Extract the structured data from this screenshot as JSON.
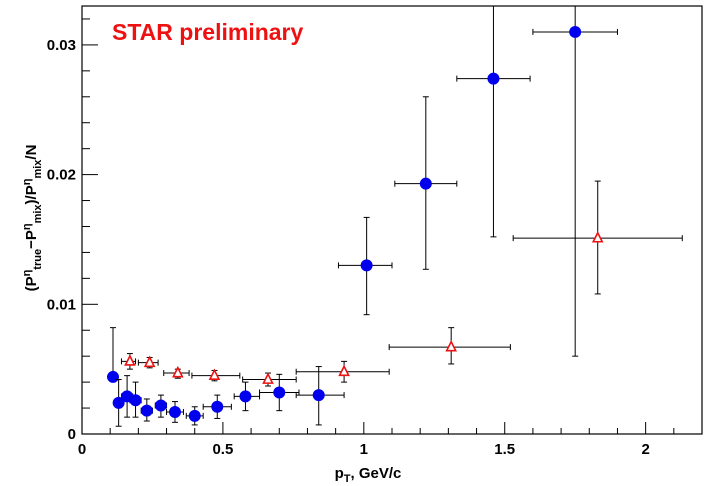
{
  "chart_data": {
    "type": "scatter",
    "annotation": "STAR preliminary",
    "annotation_color": "#ee1111",
    "xaxis": {
      "label_main": "p",
      "label_sub": "T",
      "label_rest": ", GeV/c",
      "range": [
        0,
        2.2
      ],
      "tick_labels": [
        "0",
        "0.5",
        "1",
        "1.5",
        "2"
      ]
    },
    "yaxis": {
      "label_parts": [
        {
          "t": "(P",
          "s": "n"
        },
        {
          "t": "η",
          "s": "sup"
        },
        {
          "t": "true",
          "s": "sub"
        },
        {
          "t": "−P",
          "s": "n"
        },
        {
          "t": "η",
          "s": "sup"
        },
        {
          "t": "mix",
          "s": "sub"
        },
        {
          "t": ")/P",
          "s": "n"
        },
        {
          "t": "η",
          "s": "sup"
        },
        {
          "t": "mix",
          "s": "sub"
        },
        {
          "t": "/N",
          "s": "n"
        }
      ],
      "range": [
        0,
        0.033
      ],
      "tick_labels": [
        "0",
        "0.01",
        "0.02",
        "0.03"
      ]
    },
    "grid": false,
    "series": [
      {
        "marker": "filled-circle",
        "color": "#0000ee",
        "points": [
          {
            "x": 0.11,
            "y": 0.0044,
            "xerr": [
              0.11,
              0.11
            ],
            "yerr": [
              0.0044,
              0.0082
            ]
          },
          {
            "x": 0.13,
            "y": 0.0024,
            "xerr": [
              0.12,
              0.14
            ],
            "yerr": [
              0.0006,
              0.0042
            ]
          },
          {
            "x": 0.16,
            "y": 0.0029,
            "xerr": [
              0.14,
              0.18
            ],
            "yerr": [
              0.0013,
              0.0045
            ]
          },
          {
            "x": 0.19,
            "y": 0.0026,
            "xerr": [
              0.17,
              0.21
            ],
            "yerr": [
              0.0013,
              0.004
            ]
          },
          {
            "x": 0.23,
            "y": 0.0018,
            "xerr": [
              0.21,
              0.25
            ],
            "yerr": [
              0.001,
              0.0027
            ]
          },
          {
            "x": 0.28,
            "y": 0.0022,
            "xerr": [
              0.26,
              0.3
            ],
            "yerr": [
              0.0013,
              0.003
            ]
          },
          {
            "x": 0.33,
            "y": 0.0017,
            "xerr": [
              0.3,
              0.36
            ],
            "yerr": [
              0.0009,
              0.0025
            ]
          },
          {
            "x": 0.4,
            "y": 0.0014,
            "xerr": [
              0.37,
              0.43
            ],
            "yerr": [
              0.0007,
              0.0021
            ]
          },
          {
            "x": 0.48,
            "y": 0.0021,
            "xerr": [
              0.43,
              0.53
            ],
            "yerr": [
              0.0012,
              0.003
            ]
          },
          {
            "x": 0.58,
            "y": 0.0029,
            "xerr": [
              0.54,
              0.63
            ],
            "yerr": [
              0.0018,
              0.004
            ]
          },
          {
            "x": 0.7,
            "y": 0.0032,
            "xerr": [
              0.63,
              0.77
            ],
            "yerr": [
              0.0018,
              0.0046
            ]
          },
          {
            "x": 0.84,
            "y": 0.003,
            "xerr": [
              0.76,
              0.93
            ],
            "yerr": [
              0.0007,
              0.0052
            ]
          },
          {
            "x": 1.01,
            "y": 0.013,
            "xerr": [
              0.91,
              1.1
            ],
            "yerr": [
              0.0092,
              0.0167
            ]
          },
          {
            "x": 1.22,
            "y": 0.0193,
            "xerr": [
              1.11,
              1.33
            ],
            "yerr": [
              0.0127,
              0.026
            ]
          },
          {
            "x": 1.46,
            "y": 0.0274,
            "xerr": [
              1.33,
              1.59
            ],
            "yerr": [
              0.0152,
              0.033
            ]
          },
          {
            "x": 1.75,
            "y": 0.031,
            "xerr": [
              1.6,
              1.9
            ],
            "yerr": [
              0.006,
              0.033
            ]
          }
        ]
      },
      {
        "marker": "open-triangle",
        "color": "#ee1111",
        "points": [
          {
            "x": 0.17,
            "y": 0.0056,
            "xerr": [
              0.14,
              0.19
            ],
            "yerr": [
              0.005,
              0.0062
            ]
          },
          {
            "x": 0.24,
            "y": 0.0055,
            "xerr": [
              0.2,
              0.27
            ],
            "yerr": [
              0.0051,
              0.0059
            ]
          },
          {
            "x": 0.34,
            "y": 0.0047,
            "xerr": [
              0.29,
              0.38
            ],
            "yerr": [
              0.0043,
              0.005
            ]
          },
          {
            "x": 0.47,
            "y": 0.0045,
            "xerr": [
              0.39,
              0.56
            ],
            "yerr": [
              0.0041,
              0.0049
            ]
          },
          {
            "x": 0.66,
            "y": 0.0042,
            "xerr": [
              0.57,
              0.76
            ],
            "yerr": [
              0.0037,
              0.0047
            ]
          },
          {
            "x": 0.93,
            "y": 0.0048,
            "xerr": [
              0.76,
              1.09
            ],
            "yerr": [
              0.004,
              0.0056
            ]
          },
          {
            "x": 1.31,
            "y": 0.0067,
            "xerr": [
              1.09,
              1.52
            ],
            "yerr": [
              0.0054,
              0.0082
            ]
          },
          {
            "x": 1.83,
            "y": 0.0151,
            "xerr": [
              1.53,
              2.13
            ],
            "yerr": [
              0.0108,
              0.0195
            ]
          }
        ]
      }
    ]
  }
}
